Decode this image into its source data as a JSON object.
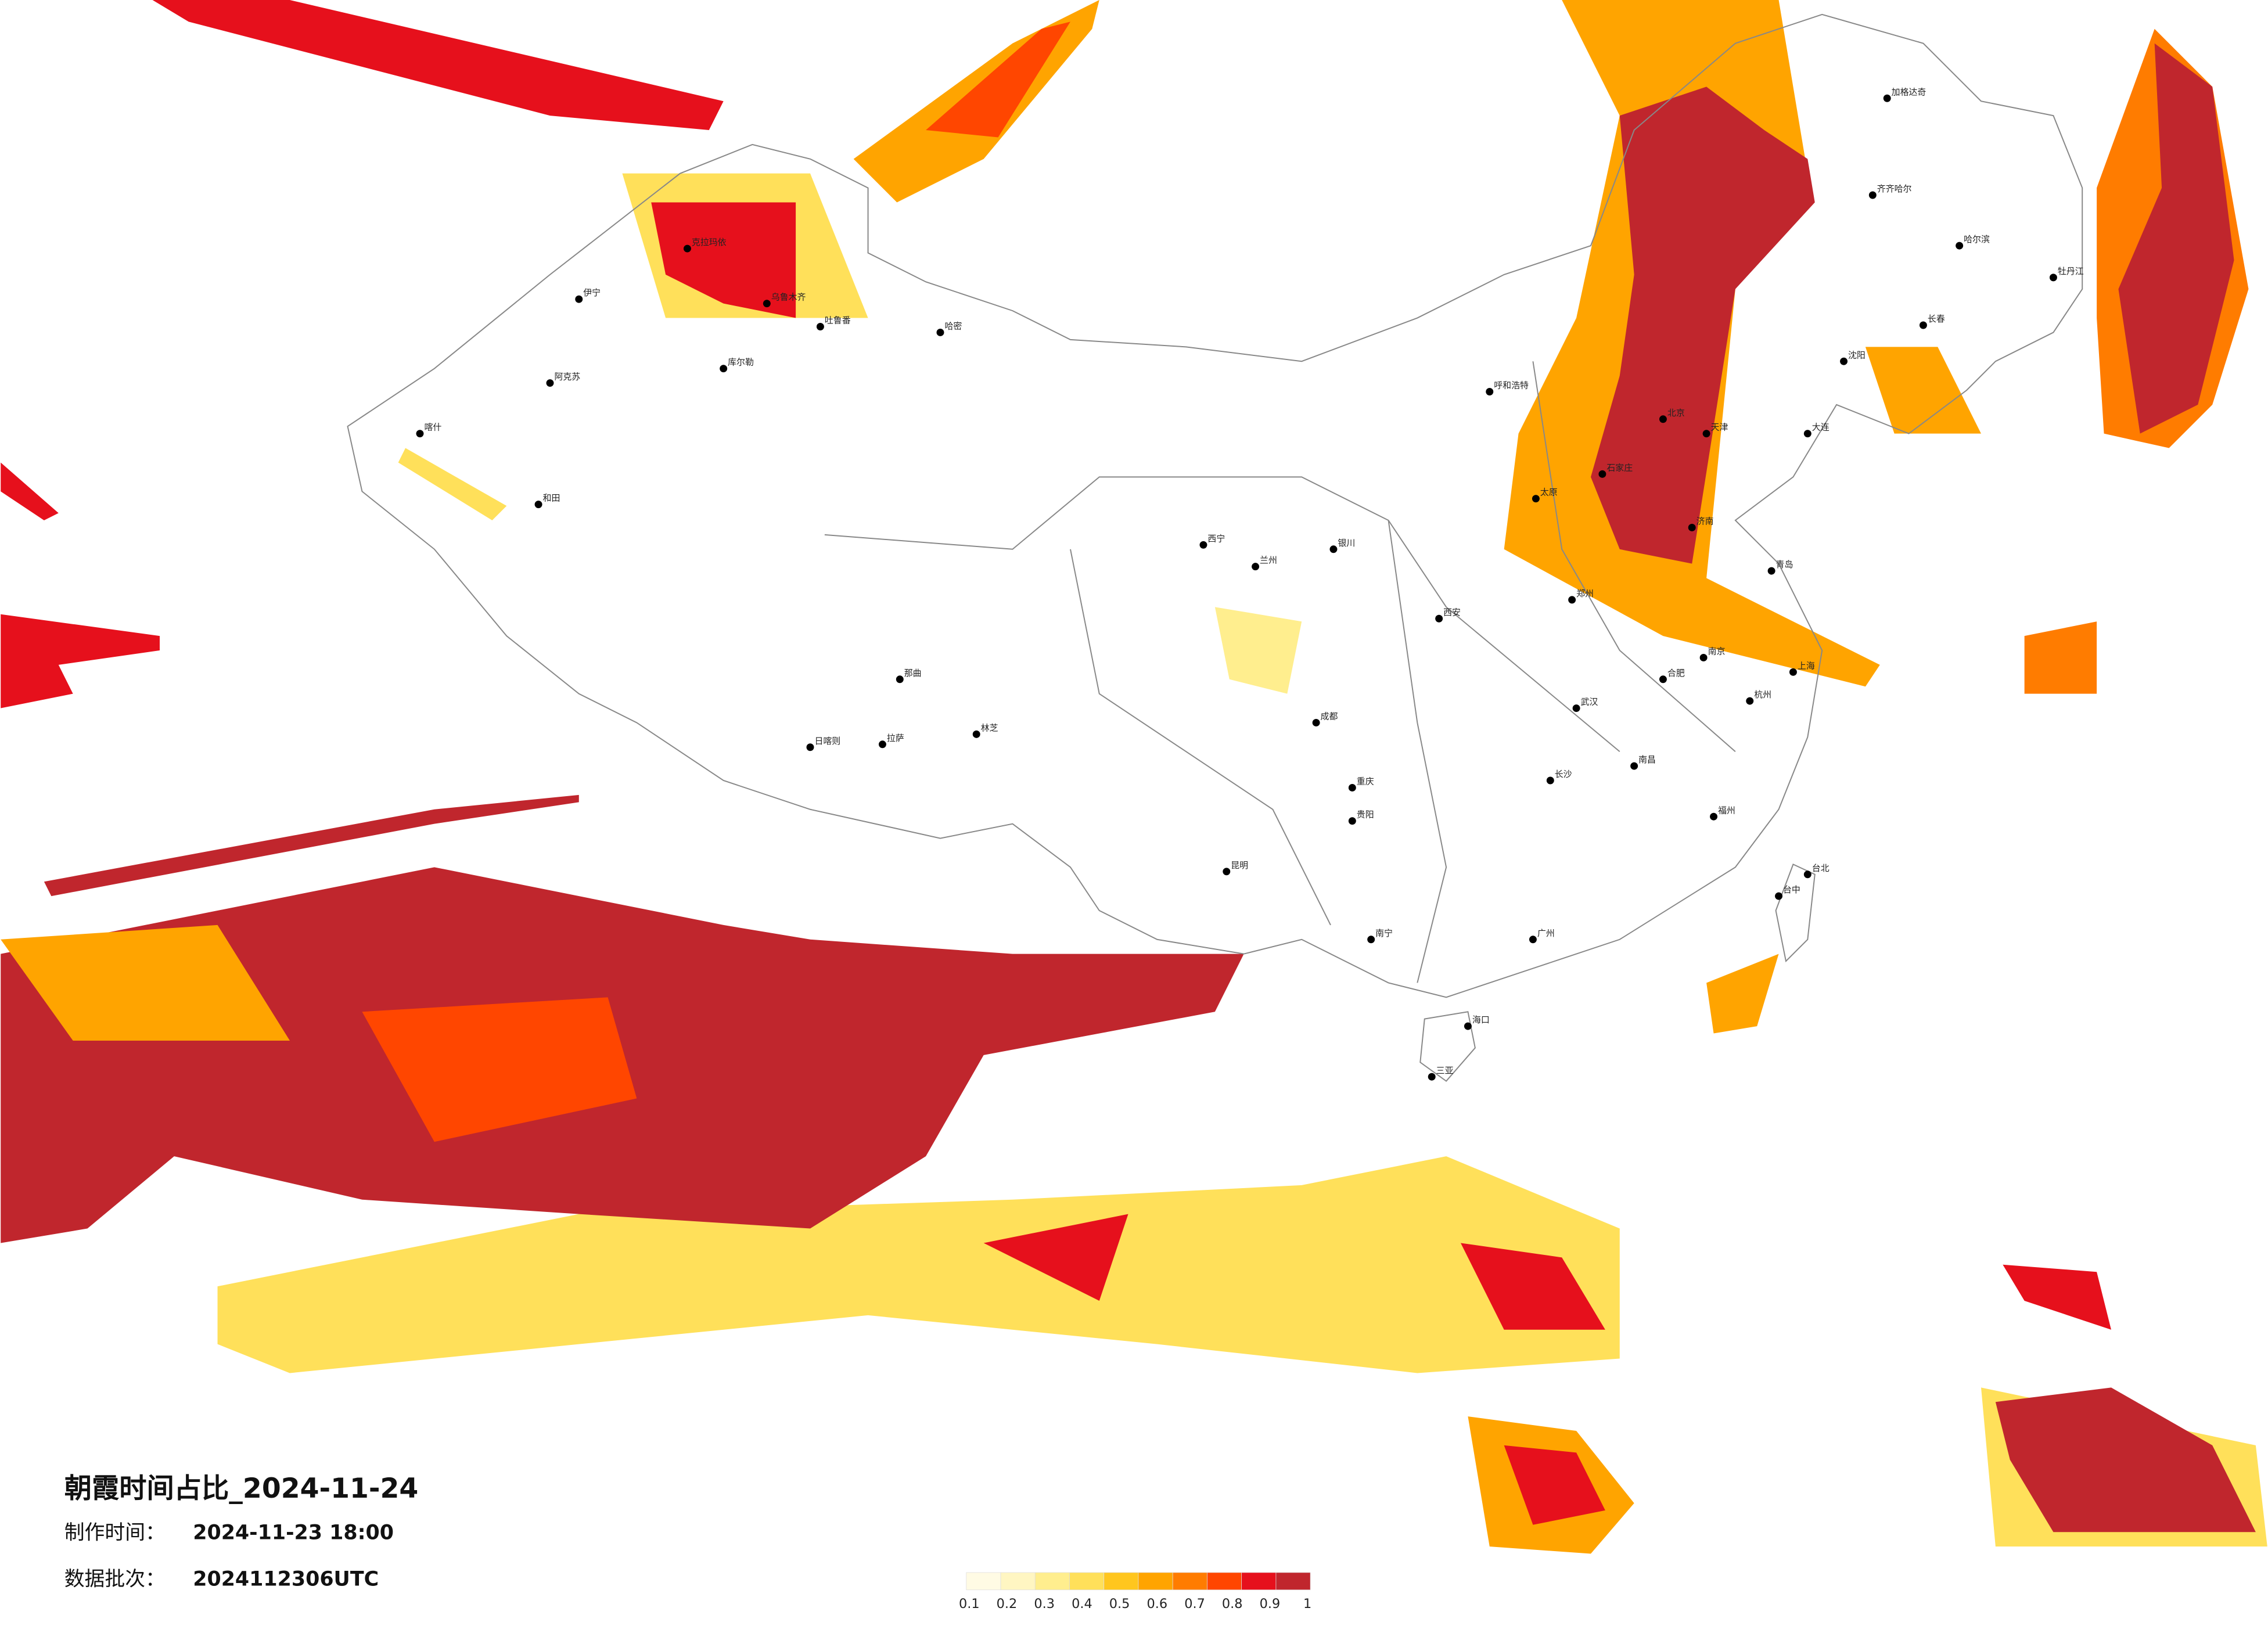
{
  "title": "朝霞时间占比_2024-11-24",
  "info": [
    {
      "label": "制作时间：",
      "value": "2024-11-23 18:00"
    },
    {
      "label": "数据批次：",
      "value": "2024112306UTC"
    }
  ],
  "legend": {
    "ticks": [
      0.1,
      0.2,
      0.3,
      0.4,
      0.5,
      0.6,
      0.7,
      0.8,
      0.9,
      1
    ],
    "colors": [
      "#fffbe4",
      "#fff6c2",
      "#ffee8e",
      "#ffe05a",
      "#ffc61e",
      "#ffa400",
      "#ff7c00",
      "#ff4600",
      "#e6101c",
      "#c0262d"
    ]
  },
  "cities": [
    "乌鲁木齐",
    "伊宁",
    "喀什",
    "和田",
    "阿克苏",
    "库尔勒",
    "哈密",
    "吐鲁番",
    "克拉玛依",
    "拉萨",
    "日喀则",
    "那曲",
    "林芝",
    "西宁",
    "兰州",
    "银川",
    "成都",
    "重庆",
    "昆明",
    "贵阳",
    "南宁",
    "广州",
    "海口",
    "三亚",
    "福州",
    "台北",
    "台中",
    "杭州",
    "南京",
    "上海",
    "武汉",
    "长沙",
    "郑州",
    "西安",
    "北京",
    "天津",
    "石家庄",
    "太原",
    "呼和浩特",
    "济南",
    "青岛",
    "沈阳",
    "长春",
    "哈尔滨",
    "大连",
    "齐齐哈尔",
    "加格达奇",
    "牡丹江",
    "南昌",
    "合肥"
  ]
}
